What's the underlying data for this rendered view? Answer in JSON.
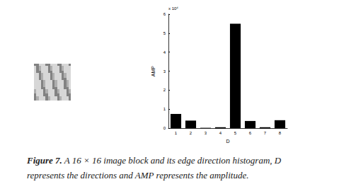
{
  "chart_data": {
    "type": "bar",
    "categories": [
      "1",
      "2",
      "3",
      "4",
      "5",
      "6",
      "7",
      "8"
    ],
    "values": [
      0.75,
      0.4,
      0.02,
      0.05,
      5.5,
      0.38,
      0.05,
      0.42
    ],
    "color": "#000000",
    "xlabel": "D",
    "ylabel": "AMP",
    "y_multiplier": "x 10⁴",
    "ylim": [
      0,
      6
    ],
    "yticks": [
      0,
      1,
      2,
      3,
      4,
      5,
      6
    ],
    "grid": false
  },
  "caption": {
    "label": "Figure 7.",
    "lines": [
      "A 16 × 16 image block and its edge direction histogram, D",
      "represents the directions and AMP represents the amplitude."
    ]
  }
}
